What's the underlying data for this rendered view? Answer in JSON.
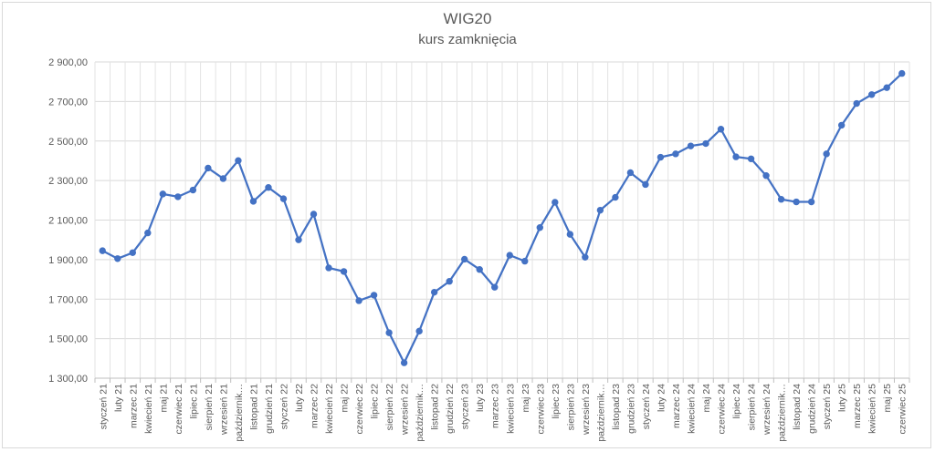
{
  "chart_data": {
    "type": "line",
    "title": "WIG20",
    "subtitle": "kurs zamknięcia",
    "xlabel": "",
    "ylabel": "",
    "ylim": [
      1300,
      2900
    ],
    "yticks": [
      1300,
      1500,
      1700,
      1900,
      2100,
      2300,
      2500,
      2700,
      2900
    ],
    "ytick_labels": [
      "1 300,00",
      "1 500,00",
      "1 700,00",
      "1 900,00",
      "2 100,00",
      "2 300,00",
      "2 500,00",
      "2 700,00",
      "2 900,00"
    ],
    "grid": true,
    "legend": "none",
    "line_color": "#4472c4",
    "categories": [
      "styczeń 21",
      "luty 21",
      "marzec 21",
      "kwiecień 21",
      "maj 21",
      "czerwiec 21",
      "lipiec 21",
      "sierpień 21",
      "wrzesień 21",
      "październik 21",
      "listopad 21",
      "grudzień 21",
      "styczeń 22",
      "luty 22",
      "marzec 22",
      "kwiecień 22",
      "maj 22",
      "czerwiec 22",
      "lipiec 22",
      "sierpień 22",
      "wrzesień 22",
      "październik 22",
      "listopad 22",
      "grudzień 22",
      "styczeń 23",
      "luty 23",
      "marzec 23",
      "kwiecień 23",
      "maj 23",
      "czerwiec 23",
      "lipiec 23",
      "sierpień 23",
      "wrzesień 23",
      "październik 23",
      "listopad 23",
      "grudzień 23",
      "styczeń 24",
      "luty 24",
      "marzec 24",
      "kwiecień 24",
      "maj 24",
      "czerwiec 24",
      "lipiec 24",
      "sierpień 24",
      "wrzesień 24",
      "październik 24",
      "listopad 24",
      "grudzień 24",
      "styczeń 25",
      "luty 25",
      "marzec 25",
      "kwiecień 25",
      "maj 25",
      "czerwiec 25"
    ],
    "x_tick_labels": [
      "styczeń 21",
      "luty 21",
      "marzec 21",
      "kwiecień 21",
      "maj 21",
      "czerwiec 21",
      "lipiec 21",
      "sierpień 21",
      "wrzesień 21",
      "październik…",
      "listopad 21",
      "grudzień 21",
      "styczeń 22",
      "luty 22",
      "marzec 22",
      "kwiecień 22",
      "maj 22",
      "czerwiec 22",
      "lipiec 22",
      "sierpień 22",
      "wrzesień 22",
      "październik…",
      "listopad 22",
      "grudzień 22",
      "styczeń 23",
      "luty 23",
      "marzec 23",
      "kwiecień 23",
      "maj 23",
      "czerwiec 23",
      "lipiec 23",
      "sierpień 23",
      "wrzesień 23",
      "październik…",
      "listopad 23",
      "grudzień 23",
      "styczeń 24",
      "luty 24",
      "marzec 24",
      "kwiecień 24",
      "maj 24",
      "czerwiec 24",
      "lipiec 24",
      "sierpień 24",
      "wrzesień 24",
      "październik…",
      "listopad 24",
      "grudzień 24",
      "styczeń 25",
      "luty 25",
      "marzec 25",
      "kwiecień 25",
      "maj 25",
      "czerwiec 25"
    ],
    "values": [
      1945,
      1905,
      1935,
      2035,
      2232,
      2218,
      2252,
      2363,
      2310,
      2401,
      2195,
      2265,
      2208,
      2000,
      2130,
      1858,
      1840,
      1692,
      1720,
      1530,
      1378,
      1538,
      1735,
      1790,
      1902,
      1850,
      1760,
      1922,
      1892,
      2062,
      2190,
      2028,
      1912,
      2150,
      2215,
      2340,
      2280,
      2418,
      2435,
      2475,
      2487,
      2560,
      2420,
      2410,
      2325,
      2205,
      2192,
      2192,
      2435,
      2580,
      2690,
      2735,
      2770,
      2842
    ]
  }
}
